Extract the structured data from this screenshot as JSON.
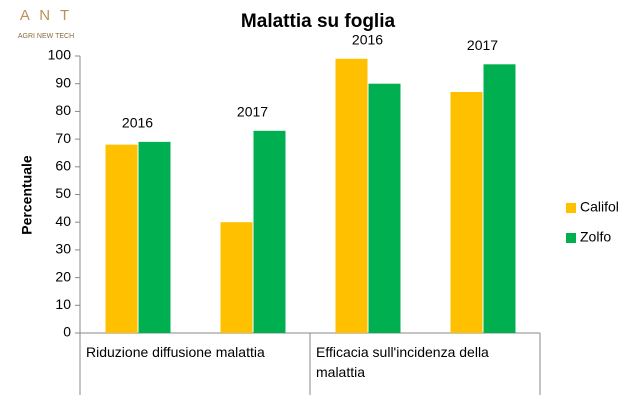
{
  "logo": {
    "name": "A N T",
    "tagline": "AGRI NEW TECH"
  },
  "chart_data": {
    "type": "bar",
    "title": "Malattia su foglia",
    "ylabel": "Percentuale",
    "categories": [
      "2016",
      "2017",
      "2016",
      "2017"
    ],
    "category_groups": [
      "Riduzione diffusione malattia",
      "Efficacia sull'incidenza della malattia"
    ],
    "series": [
      {
        "name": "Califol",
        "color": "#ffc000",
        "values": [
          68,
          40,
          99,
          87
        ]
      },
      {
        "name": "Zolfo",
        "color": "#00b050",
        "values": [
          69,
          73,
          90,
          97
        ]
      }
    ],
    "ylim": [
      0,
      100
    ],
    "yticks": [
      0,
      10,
      20,
      30,
      40,
      50,
      60,
      70,
      80,
      90,
      100
    ],
    "legend": "right"
  }
}
